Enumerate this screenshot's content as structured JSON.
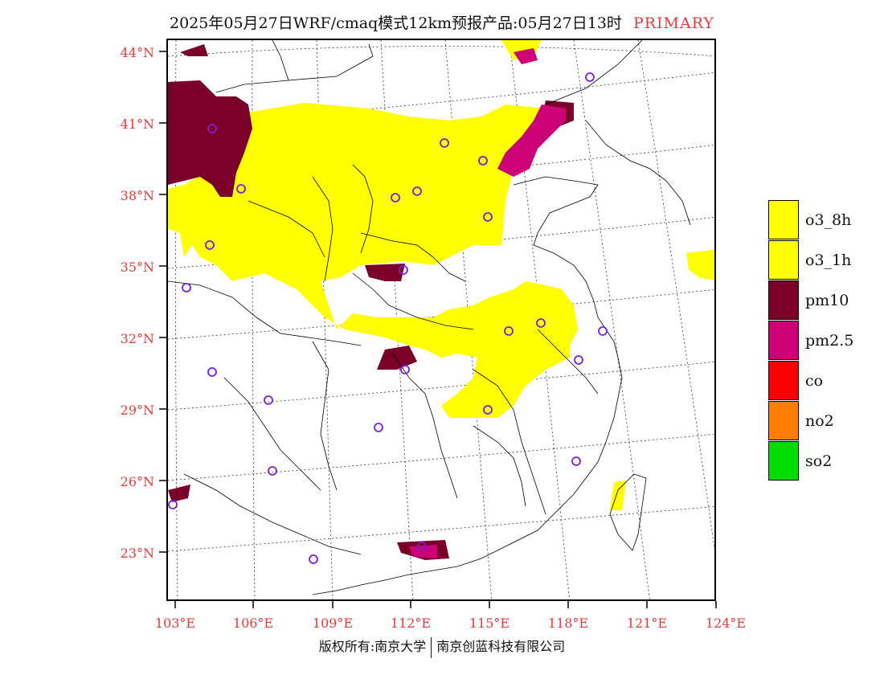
{
  "title": {
    "main": "2025年05月27日WRF/cmaq模式12km预报产品:05月27日13时",
    "tag": "PRIMARY"
  },
  "axes": {
    "lat_labels": [
      "44°N",
      "41°N",
      "38°N",
      "35°N",
      "32°N",
      "29°N",
      "26°N",
      "23°N"
    ],
    "lon_labels": [
      "103°E",
      "106°E",
      "109°E",
      "112°E",
      "115°E",
      "118°E",
      "121°E",
      "124°E"
    ]
  },
  "legend": {
    "items": [
      {
        "label": "o3_8h",
        "color": "#ffff00"
      },
      {
        "label": "o3_1h",
        "color": "#ffff00"
      },
      {
        "label": "pm10",
        "color": "#7a0029"
      },
      {
        "label": "pm2.5",
        "color": "#cc0077"
      },
      {
        "label": "co",
        "color": "#ff0000"
      },
      {
        "label": "no2",
        "color": "#ff7f00"
      },
      {
        "label": "so2",
        "color": "#00dd00"
      }
    ]
  },
  "footer": {
    "left": "版权所有:南京大学",
    "right": "南京创蓝科技有限公司"
  },
  "colors": {
    "axis_label": "#e83a3a",
    "station_marker": "#7a1fd6"
  }
}
